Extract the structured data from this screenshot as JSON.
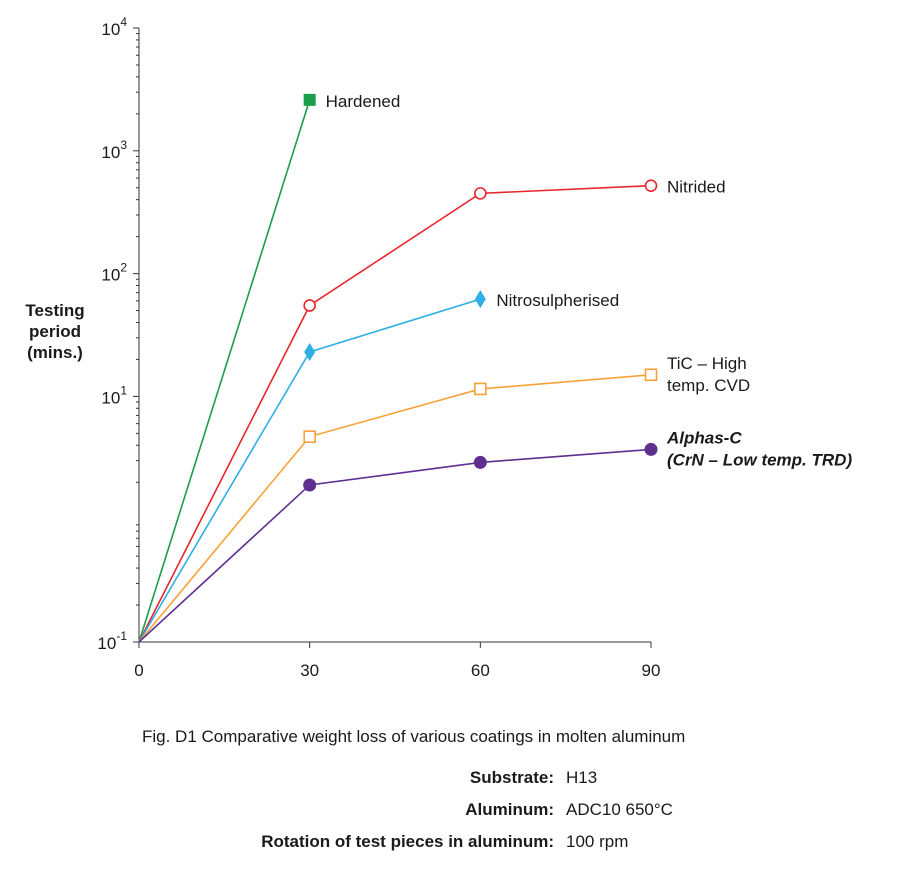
{
  "figure": {
    "ylabel_lines": [
      "Testing",
      "period",
      "(mins.)"
    ],
    "caption": "Fig. D1   Comparative weight loss of various coatings in molten aluminum",
    "info": [
      {
        "key": "Substrate:",
        "value": "H13"
      },
      {
        "key": "Aluminum:",
        "value": "ADC10 650°C"
      },
      {
        "key": "Rotation of test pieces in aluminum:",
        "value": "100 rpm"
      }
    ]
  },
  "chart_data": {
    "type": "line",
    "xlabel": "",
    "ylabel": "Testing period (mins.)",
    "x_ticks": [
      0,
      30,
      60,
      90
    ],
    "xlim": [
      0,
      90
    ],
    "y_scale": "log",
    "ylim": [
      0.1,
      10000
    ],
    "y_ticks": [
      {
        "value": 0.1,
        "base": "10",
        "exp": "-1"
      },
      {
        "value": 10,
        "base": "10",
        "exp": "1"
      },
      {
        "value": 100,
        "base": "10",
        "exp": "2"
      },
      {
        "value": 1000,
        "base": "10",
        "exp": "3"
      },
      {
        "value": 10000,
        "base": "10",
        "exp": "4"
      }
    ],
    "grid": false,
    "series": [
      {
        "name": "Hardened",
        "label_lines": [
          "Hardened"
        ],
        "color": "#1a9e4b",
        "marker": "square-filled",
        "points": [
          [
            0,
            0.1
          ],
          [
            30,
            2600
          ]
        ]
      },
      {
        "name": "Nitrided",
        "label_lines": [
          "Nitrided"
        ],
        "color": "#e8262d",
        "marker": "circle-open",
        "points": [
          [
            0,
            0.1
          ],
          [
            30,
            55
          ],
          [
            60,
            450
          ],
          [
            90,
            520
          ]
        ]
      },
      {
        "name": "Nitrosulpherised",
        "label_lines": [
          "Nitrosulpherised"
        ],
        "color": "#2eb0e4",
        "marker": "diamond-filled",
        "points": [
          [
            0,
            0.1
          ],
          [
            30,
            23
          ],
          [
            60,
            62
          ]
        ]
      },
      {
        "name": "TiC – High temp. CVD",
        "label_lines": [
          "TiC – High",
          "temp. CVD"
        ],
        "color": "#f7a239",
        "marker": "square-open",
        "points": [
          [
            0,
            0.1
          ],
          [
            30,
            4.7
          ],
          [
            60,
            11.5
          ],
          [
            90,
            15
          ]
        ]
      },
      {
        "name": "Alphas-C (CrN – Low temp. TRD)",
        "label_lines": [
          "Alphas-C",
          "(CrN – Low temp. TRD)"
        ],
        "color": "#5e2f8f",
        "marker": "circle-filled",
        "label_style": "bold-italic",
        "points": [
          [
            0,
            0.1
          ],
          [
            30,
            1.9
          ],
          [
            60,
            2.9
          ],
          [
            90,
            3.7
          ]
        ]
      }
    ]
  }
}
